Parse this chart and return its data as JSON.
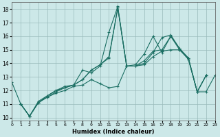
{
  "xlabel": "Humidex (Indice chaleur)",
  "background_color": "#cce8e8",
  "line_color": "#1a6e62",
  "xlim": [
    0,
    23
  ],
  "ylim": [
    9.8,
    18.5
  ],
  "yticks": [
    10,
    11,
    12,
    13,
    14,
    15,
    16,
    17,
    18
  ],
  "xticks": [
    0,
    1,
    2,
    3,
    4,
    5,
    6,
    7,
    8,
    9,
    10,
    11,
    12,
    13,
    14,
    15,
    16,
    17,
    18,
    19,
    20,
    21,
    22,
    23
  ],
  "lines": [
    {
      "x": [
        0,
        1,
        2,
        3,
        4,
        5,
        6,
        7,
        8,
        9,
        10,
        11,
        12,
        13,
        14,
        15,
        16,
        17,
        18,
        19,
        20,
        21,
        22
      ],
      "y": [
        12.6,
        11.0,
        10.1,
        11.1,
        11.6,
        12.0,
        12.2,
        12.4,
        13.5,
        13.3,
        13.8,
        16.3,
        18.2,
        13.8,
        13.8,
        14.0,
        14.8,
        15.9,
        16.1,
        15.1,
        14.3,
        11.9,
        13.1
      ]
    },
    {
      "x": [
        1,
        2,
        3,
        4,
        5,
        6,
        7,
        8,
        9,
        10,
        11,
        12,
        13,
        14,
        15,
        16,
        17,
        18,
        19,
        20,
        21,
        22
      ],
      "y": [
        11.0,
        10.1,
        11.1,
        11.5,
        11.9,
        12.2,
        12.4,
        12.8,
        13.5,
        13.9,
        14.4,
        18.1,
        13.8,
        13.9,
        14.7,
        16.0,
        14.8,
        16.0,
        15.0,
        14.3,
        11.9,
        13.1
      ]
    },
    {
      "x": [
        1,
        2,
        3,
        4,
        5,
        6,
        7,
        8,
        9,
        10,
        11,
        12,
        13,
        14,
        15,
        16,
        17,
        18,
        19,
        20,
        21,
        22
      ],
      "y": [
        11.0,
        10.1,
        11.2,
        11.6,
        12.0,
        12.3,
        12.4,
        12.8,
        13.5,
        13.9,
        14.5,
        18.1,
        13.8,
        13.8,
        14.2,
        14.9,
        15.0,
        16.0,
        15.1,
        14.4,
        11.9,
        13.1
      ]
    },
    {
      "x": [
        1,
        2,
        3,
        4,
        5,
        6,
        7,
        8,
        9,
        10,
        11,
        12,
        13,
        14,
        15,
        16,
        17,
        18,
        19,
        20,
        21,
        22,
        23
      ],
      "y": [
        11.0,
        10.1,
        11.1,
        11.5,
        11.8,
        12.0,
        12.3,
        12.4,
        12.8,
        12.5,
        12.2,
        12.3,
        13.8,
        13.8,
        13.9,
        14.5,
        14.9,
        15.0,
        15.0,
        14.4,
        11.9,
        11.9,
        13.1
      ]
    }
  ]
}
